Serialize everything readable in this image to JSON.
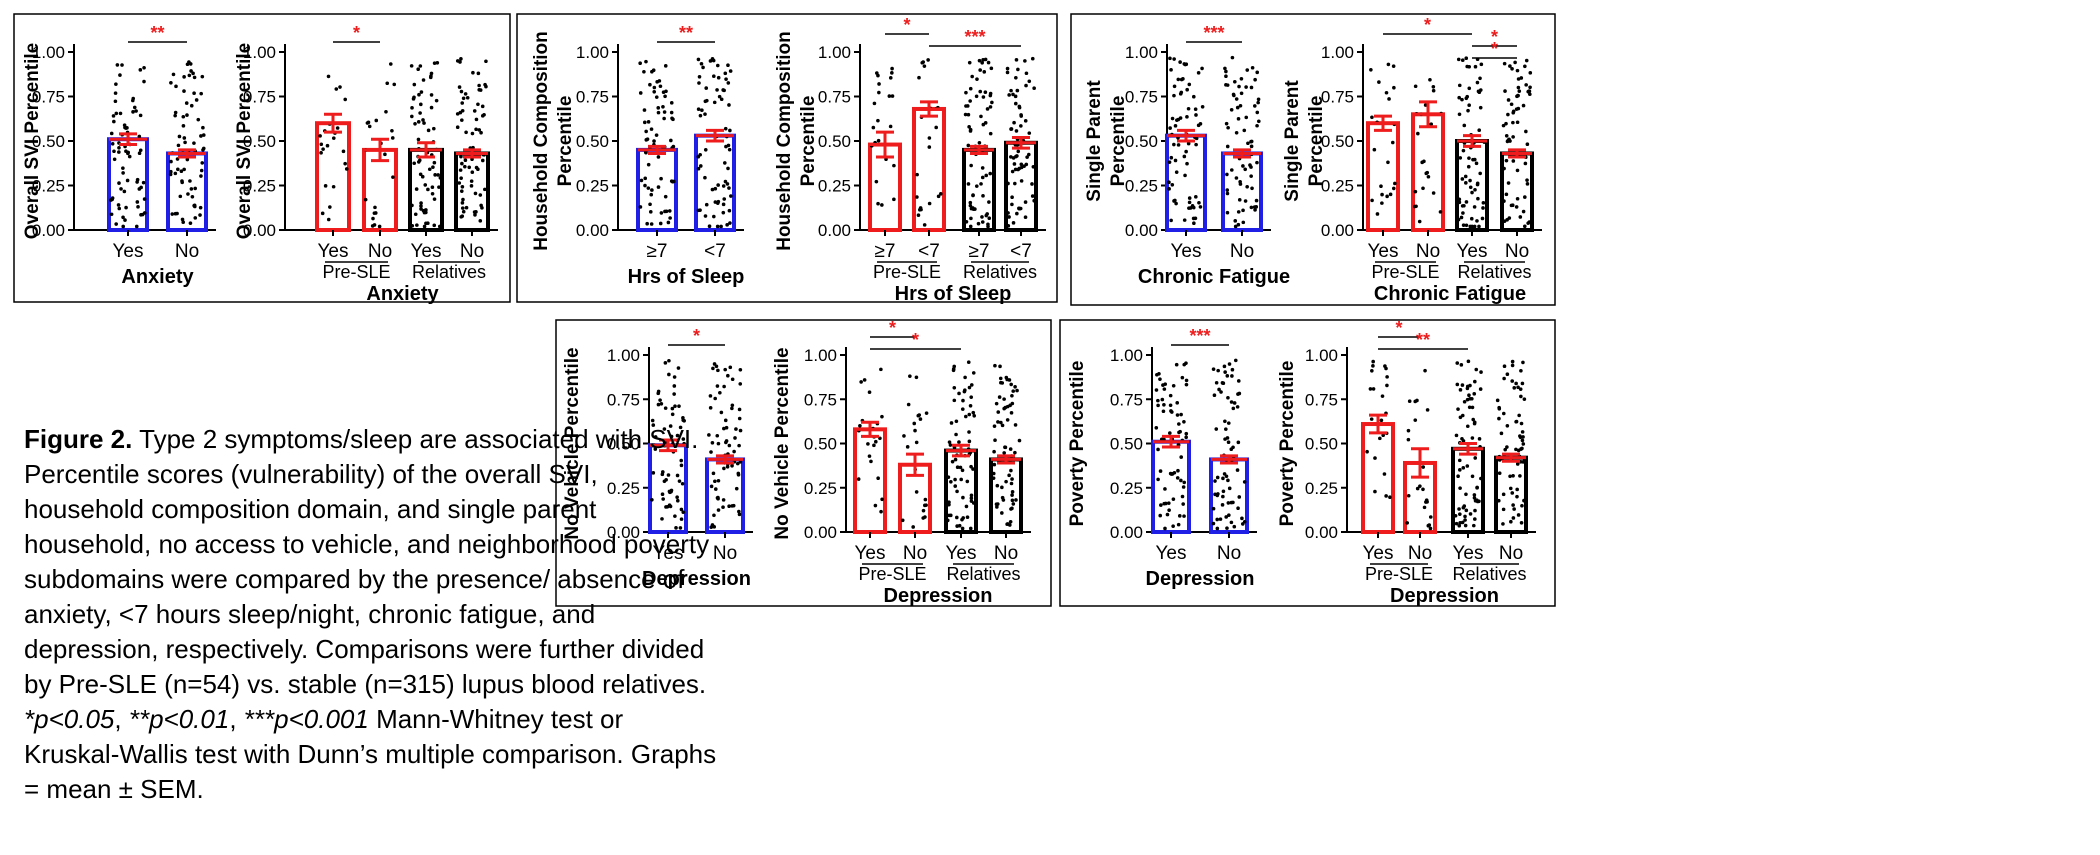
{
  "caption": {
    "figure_label": "Figure 2.",
    "text": "Type 2 symptoms/sleep are associated with SVI. Percentile scores (vulnerability) of the overall SVI, household composition domain, and single parent household, no access to vehicle, and neighborhood poverty subdomains were compared by the presence/ absence of anxiety, <7 hours sleep/night, chronic fatigue, and depression, respectively. Comparisons were further divided by Pre-SLE (n=54) vs. stable (n=315) lupus blood relatives.",
    "stats_1": "*p<0.05",
    "stats_2": "**p<0.01",
    "stats_3": "***p<0.001",
    "tail": "Mann-Whitney test or Kruskal-Wallis test with Dunn’s multiple comparison. Graphs = mean ± SEM."
  },
  "colors": {
    "blue": "#1f1fe6",
    "red": "#ee1c1c",
    "black": "#000000",
    "sig": "#ee1c1c"
  },
  "chart_data": [
    {
      "type": "bar",
      "ylabel": "Overall SVI Percentile",
      "ylim": [
        0,
        1
      ],
      "yticks": [
        "0.00",
        "0.25",
        "0.50",
        "0.75",
        "1.00"
      ],
      "categories": [
        "Yes",
        "No"
      ],
      "values": [
        0.51,
        0.43
      ],
      "sem": [
        0.03,
        0.02
      ],
      "colors": [
        "blue",
        "blue"
      ],
      "groups": [],
      "xlabel": "Anxiety",
      "sig": [
        {
          "a": 0,
          "b": 1,
          "label": "**"
        }
      ]
    },
    {
      "type": "bar",
      "ylabel": "Overall SVI Percentile",
      "ylim": [
        0,
        1
      ],
      "yticks": [
        "0.00",
        "0.25",
        "0.50",
        "0.75",
        "1.00"
      ],
      "categories": [
        "Yes",
        "No",
        "Yes",
        "No"
      ],
      "values": [
        0.6,
        0.45,
        0.45,
        0.43
      ],
      "sem": [
        0.05,
        0.06,
        0.04,
        0.02
      ],
      "colors": [
        "red",
        "red",
        "black",
        "black"
      ],
      "groups": [
        {
          "label": "Pre-SLE",
          "from": 0,
          "to": 1
        },
        {
          "label": "Relatives",
          "from": 2,
          "to": 3
        }
      ],
      "xlabel": "Anxiety",
      "sig": [
        {
          "a": 0,
          "b": 1,
          "label": "*"
        }
      ]
    },
    {
      "type": "bar",
      "ylabel": "Household Composition Percentile",
      "ylim": [
        0,
        1
      ],
      "yticks": [
        "0.00",
        "0.25",
        "0.50",
        "0.75",
        "1.00"
      ],
      "categories": [
        "≥7",
        "<7"
      ],
      "values": [
        0.45,
        0.53
      ],
      "sem": [
        0.02,
        0.03
      ],
      "colors": [
        "blue",
        "blue"
      ],
      "groups": [],
      "xlabel": "Hrs of  Sleep",
      "sig": [
        {
          "a": 0,
          "b": 1,
          "label": "**"
        }
      ]
    },
    {
      "type": "bar",
      "ylabel": "Household Composition Percentile",
      "ylim": [
        0,
        1
      ],
      "yticks": [
        "0.00",
        "0.25",
        "0.50",
        "0.75",
        "1.00"
      ],
      "categories": [
        "≥7",
        "<7",
        "≥7",
        "<7"
      ],
      "values": [
        0.48,
        0.68,
        0.45,
        0.49
      ],
      "sem": [
        0.07,
        0.04,
        0.02,
        0.03
      ],
      "colors": [
        "red",
        "red",
        "black",
        "black"
      ],
      "groups": [
        {
          "label": "Pre-SLE",
          "from": 0,
          "to": 1
        },
        {
          "label": "Relatives",
          "from": 2,
          "to": 3
        }
      ],
      "xlabel": "Hrs of  Sleep",
      "sig": [
        {
          "a": 0,
          "b": 1,
          "label": "*"
        },
        {
          "a": 1,
          "b": 3,
          "label": "***"
        }
      ]
    },
    {
      "type": "bar",
      "ylabel": "Single Parent  Percentile",
      "ylim": [
        0,
        1
      ],
      "yticks": [
        "0.00",
        "0.25",
        "0.50",
        "0.75",
        "1.00"
      ],
      "categories": [
        "Yes",
        "No"
      ],
      "values": [
        0.53,
        0.43
      ],
      "sem": [
        0.03,
        0.02
      ],
      "colors": [
        "blue",
        "blue"
      ],
      "groups": [],
      "xlabel": "Chronic Fatigue",
      "sig": [
        {
          "a": 0,
          "b": 1,
          "label": "***"
        }
      ]
    },
    {
      "type": "bar",
      "ylabel": "Single  Parent Percentile",
      "ylim": [
        0,
        1
      ],
      "yticks": [
        "0.00",
        "0.25",
        "0.50",
        "0.75",
        "1.00"
      ],
      "categories": [
        "Yes",
        "No",
        "Yes",
        "No"
      ],
      "values": [
        0.6,
        0.65,
        0.5,
        0.43
      ],
      "sem": [
        0.04,
        0.07,
        0.03,
        0.02
      ],
      "colors": [
        "red",
        "red",
        "black",
        "black"
      ],
      "groups": [
        {
          "label": "Pre-SLE",
          "from": 0,
          "to": 1
        },
        {
          "label": "Relatives",
          "from": 2,
          "to": 3
        }
      ],
      "xlabel": "Chronic Fatigue",
      "sig": [
        {
          "a": 0,
          "b": 2,
          "label": "*"
        },
        {
          "a": 2,
          "b": 3,
          "label": "*"
        },
        {
          "a": 2,
          "b": 3,
          "label": "*"
        }
      ]
    },
    {
      "type": "bar",
      "ylabel": "No Vehicle Percentile",
      "ylim": [
        0,
        1
      ],
      "yticks": [
        "0.00",
        "0.25",
        "0.50",
        "0.75",
        "1.00"
      ],
      "categories": [
        "Yes",
        "No"
      ],
      "values": [
        0.49,
        0.41
      ],
      "sem": [
        0.03,
        0.02
      ],
      "colors": [
        "blue",
        "blue"
      ],
      "groups": [],
      "xlabel": "Depression",
      "sig": [
        {
          "a": 0,
          "b": 1,
          "label": "*"
        }
      ]
    },
    {
      "type": "bar",
      "ylabel": "No Vehicle Percentile",
      "ylim": [
        0,
        1
      ],
      "yticks": [
        "0.00",
        "0.25",
        "0.50",
        "0.75",
        "1.00"
      ],
      "categories": [
        "Yes",
        "No",
        "Yes",
        "No"
      ],
      "values": [
        0.58,
        0.38,
        0.46,
        0.41
      ],
      "sem": [
        0.04,
        0.06,
        0.03,
        0.02
      ],
      "colors": [
        "red",
        "red",
        "black",
        "black"
      ],
      "groups": [
        {
          "label": "Pre-SLE",
          "from": 0,
          "to": 1
        },
        {
          "label": "Relatives",
          "from": 2,
          "to": 3
        }
      ],
      "xlabel": "Depression",
      "sig": [
        {
          "a": 0,
          "b": 1,
          "label": "*"
        },
        {
          "a": 0,
          "b": 2,
          "label": "*"
        }
      ]
    },
    {
      "type": "bar",
      "ylabel": "Poverty Percentile",
      "ylim": [
        0,
        1
      ],
      "yticks": [
        "0.00",
        "0.25",
        "0.50",
        "0.75",
        "1.00"
      ],
      "categories": [
        "Yes",
        "No"
      ],
      "values": [
        0.51,
        0.41
      ],
      "sem": [
        0.03,
        0.02
      ],
      "colors": [
        "blue",
        "blue"
      ],
      "groups": [],
      "xlabel": "Depression",
      "sig": [
        {
          "a": 0,
          "b": 1,
          "label": "***"
        }
      ]
    },
    {
      "type": "bar",
      "ylabel": "Poverty Percentile",
      "ylim": [
        0,
        1
      ],
      "yticks": [
        "0.00",
        "0.25",
        "0.50",
        "0.75",
        "1.00"
      ],
      "categories": [
        "Yes",
        "No",
        "Yes",
        "No"
      ],
      "values": [
        0.61,
        0.39,
        0.47,
        0.42
      ],
      "sem": [
        0.05,
        0.08,
        0.03,
        0.02
      ],
      "colors": [
        "red",
        "red",
        "black",
        "black"
      ],
      "groups": [
        {
          "label": "Pre-SLE",
          "from": 0,
          "to": 1
        },
        {
          "label": "Relatives",
          "from": 2,
          "to": 3
        }
      ],
      "xlabel": "Depression",
      "sig": [
        {
          "a": 0,
          "b": 1,
          "label": "*"
        },
        {
          "a": 0,
          "b": 2,
          "label": "**"
        }
      ]
    }
  ]
}
